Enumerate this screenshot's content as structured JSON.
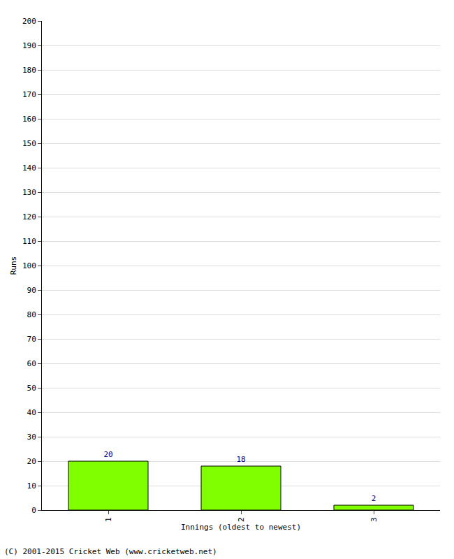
{
  "chart_data": {
    "type": "bar",
    "categories": [
      "1",
      "2",
      "3"
    ],
    "values": [
      20,
      18,
      2
    ],
    "color": "#80ff00",
    "x_label": "Innings (oldest to newest)",
    "y_label": "Runs",
    "ylim": [
      0,
      200
    ],
    "yticks": [
      0,
      10,
      20,
      30,
      40,
      50,
      60,
      70,
      80,
      90,
      100,
      110,
      120,
      130,
      140,
      150,
      160,
      170,
      180,
      190,
      200
    ],
    "grid": true,
    "data_labels": true,
    "annotations": [
      "(C) 2001-2015 Cricket Web (www.cricketweb.net)"
    ]
  }
}
